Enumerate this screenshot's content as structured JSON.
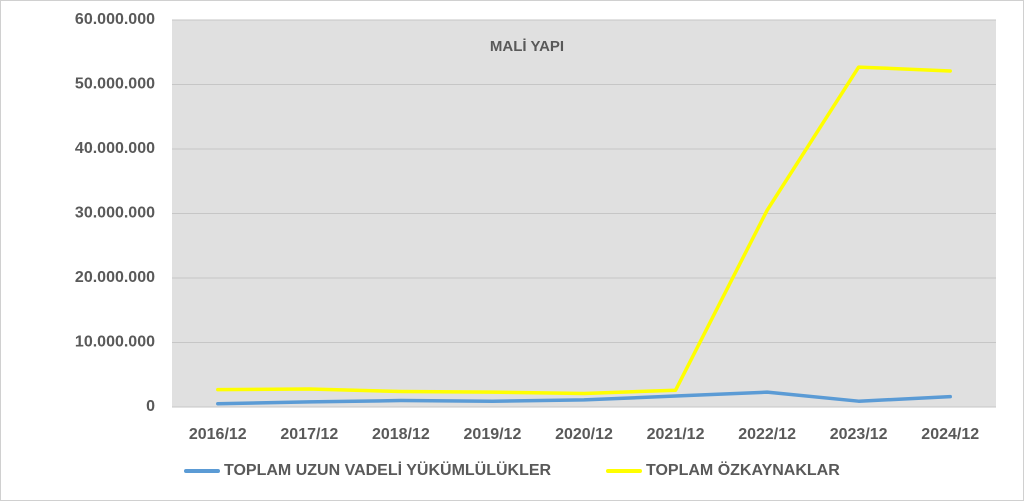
{
  "chart_data": {
    "type": "line",
    "title": "MALİ YAPI",
    "categories": [
      "2016/12",
      "2017/12",
      "2018/12",
      "2019/12",
      "2020/12",
      "2021/12",
      "2022/12",
      "2023/12",
      "2024/12"
    ],
    "series": [
      {
        "name": "TOPLAM UZUN VADELİ YÜKÜMLÜLÜKLER",
        "color": "#5b9bd5",
        "values": [
          500000,
          800000,
          1000000,
          900000,
          1100000,
          1700000,
          2300000,
          900000,
          1600000
        ]
      },
      {
        "name": "TOPLAM ÖZKAYNAKLAR",
        "color": "#ffff00",
        "values": [
          2700000,
          2800000,
          2400000,
          2300000,
          2100000,
          2600000,
          30500000,
          52700000,
          52100000
        ]
      }
    ],
    "ylim": [
      0,
      60000000
    ],
    "yticks": [
      0,
      {
        "value": 10000000,
        "label": "10.000.000"
      },
      {
        "value": 20000000,
        "label": "20.000.000"
      },
      {
        "value": 30000000,
        "label": "30.000.000"
      },
      {
        "value": 40000000,
        "label": "40.000.000"
      },
      {
        "value": 50000000,
        "label": "50.000.000"
      },
      {
        "value": 60000000,
        "label": "60.000.000"
      }
    ],
    "grid": true,
    "legend": "bottom"
  }
}
